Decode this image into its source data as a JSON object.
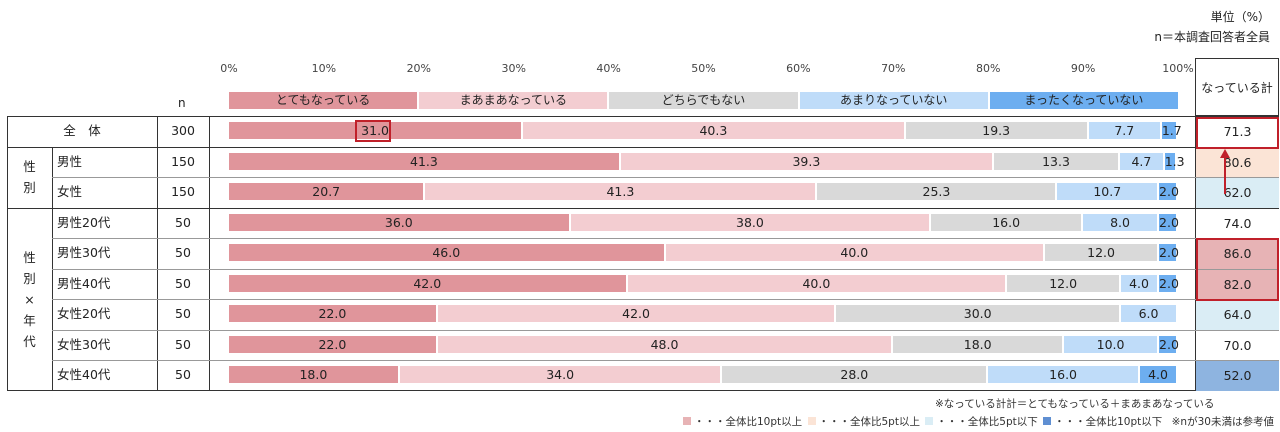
{
  "unit_label": "単位（%）",
  "base_label": "n＝本調査回答者全員",
  "n_header": "n",
  "total_header": "なっている計",
  "axis_ticks": [
    "0%",
    "10%",
    "20%",
    "30%",
    "40%",
    "50%",
    "60%",
    "70%",
    "80%",
    "90%",
    "100%"
  ],
  "colors": {
    "cat1": "#e0959b",
    "cat2": "#f3cdd1",
    "cat3": "#d9d9d9",
    "cat4": "#bfdcf9",
    "cat5": "#6daef0",
    "hi10": "#e7b3b5",
    "hi5": "#fbe4d6",
    "lo5": "#daedf5",
    "lo10": "#8eb4e0",
    "highlight": "#c0202a"
  },
  "groups": [
    {
      "label": "性\n別",
      "rows": [
        1,
        2
      ]
    },
    {
      "label": "性\n別\n×\n年\n代",
      "rows": [
        3,
        4,
        5,
        6,
        7,
        8
      ]
    }
  ],
  "chart_data": {
    "type": "bar",
    "orientation": "horizontal-stacked-100",
    "categories_legend": [
      "とてもなっている",
      "まあまあなっている",
      "どちらでもない",
      "あまりなっていない",
      "まったくなっていない"
    ],
    "xlim": [
      0,
      100
    ],
    "rows": [
      {
        "label": "全　体",
        "n": "300",
        "values": [
          31.0,
          40.3,
          19.3,
          7.7,
          1.7
        ],
        "labels": [
          "31.0",
          "40.3",
          "19.3",
          "7.7",
          "1.7"
        ],
        "total": "71.3",
        "mark": "none"
      },
      {
        "label": "男性",
        "n": "150",
        "values": [
          41.3,
          39.3,
          13.3,
          4.7,
          1.3
        ],
        "labels": [
          "41.3",
          "39.3",
          "13.3",
          "4.7",
          "1.3"
        ],
        "total": "80.6",
        "mark": "hi5"
      },
      {
        "label": "女性",
        "n": "150",
        "values": [
          20.7,
          41.3,
          25.3,
          10.7,
          2.0
        ],
        "labels": [
          "20.7",
          "41.3",
          "25.3",
          "10.7",
          "2.0"
        ],
        "total": "62.0",
        "mark": "lo5"
      },
      {
        "label": "男性20代",
        "n": "50",
        "values": [
          36.0,
          38.0,
          16.0,
          8.0,
          2.0
        ],
        "labels": [
          "36.0",
          "38.0",
          "16.0",
          "8.0",
          "2.0"
        ],
        "total": "74.0",
        "mark": "none"
      },
      {
        "label": "男性30代",
        "n": "50",
        "values": [
          46.0,
          40.0,
          12.0,
          0,
          2.0
        ],
        "labels": [
          "46.0",
          "40.0",
          "12.0",
          "",
          "2.0"
        ],
        "total": "86.0",
        "mark": "hi10"
      },
      {
        "label": "男性40代",
        "n": "50",
        "values": [
          42.0,
          40.0,
          12.0,
          4.0,
          2.0
        ],
        "labels": [
          "42.0",
          "40.0",
          "12.0",
          "4.0",
          "2.0"
        ],
        "total": "82.0",
        "mark": "hi10"
      },
      {
        "label": "女性20代",
        "n": "50",
        "values": [
          22.0,
          42.0,
          30.0,
          6.0,
          0
        ],
        "labels": [
          "22.0",
          "42.0",
          "30.0",
          "6.0",
          ""
        ],
        "total": "64.0",
        "mark": "lo5"
      },
      {
        "label": "女性30代",
        "n": "50",
        "values": [
          22.0,
          48.0,
          18.0,
          10.0,
          2.0
        ],
        "labels": [
          "22.0",
          "48.0",
          "18.0",
          "10.0",
          "2.0"
        ],
        "total": "70.0",
        "mark": "none"
      },
      {
        "label": "女性40代",
        "n": "50",
        "values": [
          18.0,
          34.0,
          28.0,
          16.0,
          4.0
        ],
        "labels": [
          "18.0",
          "34.0",
          "28.0",
          "16.0",
          "4.0"
        ],
        "total": "52.0",
        "mark": "lo10"
      }
    ]
  },
  "notes": {
    "total_def": "※なっている計計＝とてもなっている＋まあまあなっている",
    "legend_hi10": "・・・全体比10pt以上",
    "legend_hi5": "・・・全体比5pt以上",
    "legend_lo5": "・・・全体比5pt以下",
    "legend_lo10": "・・・全体比10pt以下",
    "ref_note": "※nが30未満は参考値"
  }
}
